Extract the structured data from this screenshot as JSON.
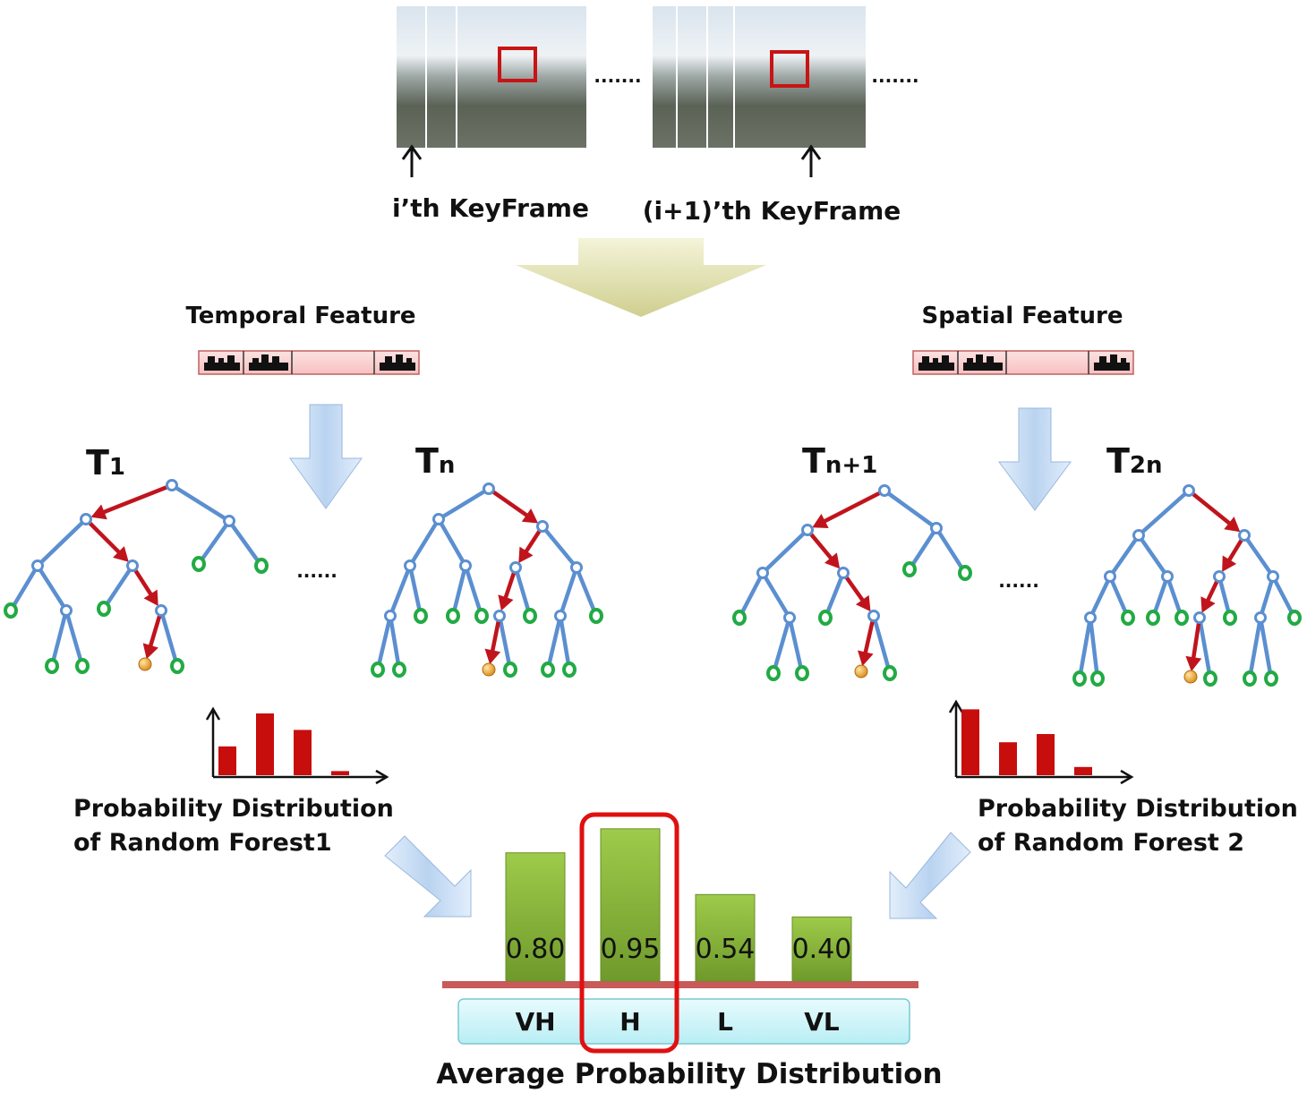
{
  "frames": {
    "left_label": "i’th KeyFrame",
    "right_label": "(i+1)’th KeyFrame",
    "ellipsis": "......."
  },
  "features": {
    "temporal_label": "Temporal Feature",
    "spatial_label": "Spatial Feature"
  },
  "trees": {
    "t1": {
      "base": "T",
      "sub": "1"
    },
    "tn": {
      "base": "T",
      "sub": "n"
    },
    "tn1": {
      "base": "T",
      "sub": "n+1"
    },
    "t2n": {
      "base": "T",
      "sub": "2n"
    },
    "ellipsis": "......"
  },
  "forests": {
    "rf1_line1": "Probability Distribution",
    "rf1_line2": "of Random Forest1",
    "rf2_line1": "Probability  Distribution",
    "rf2_line2": "of Random Forest 2",
    "rf1_bars": [
      0.35,
      0.75,
      0.55,
      0.05
    ],
    "rf2_bars": [
      0.8,
      0.4,
      0.5,
      0.1
    ]
  },
  "chart_data": {
    "type": "bar",
    "categories": [
      "VH",
      "H",
      "L",
      "VL"
    ],
    "values": [
      0.8,
      0.95,
      0.54,
      0.4
    ],
    "value_labels": [
      "0.80",
      "0.95",
      "0.54",
      "0.40"
    ],
    "title": "Average Probability Distribution",
    "highlighted": "H",
    "bar_color": "#8fbc3a",
    "highlight_color": "#e01010"
  },
  "colors": {
    "tree_edge": "#5b8fd0",
    "path_edge": "#c0141c",
    "leaf": "#22aa44",
    "hit_leaf": "#e6a020",
    "mini_bar": "#c80d0d"
  }
}
